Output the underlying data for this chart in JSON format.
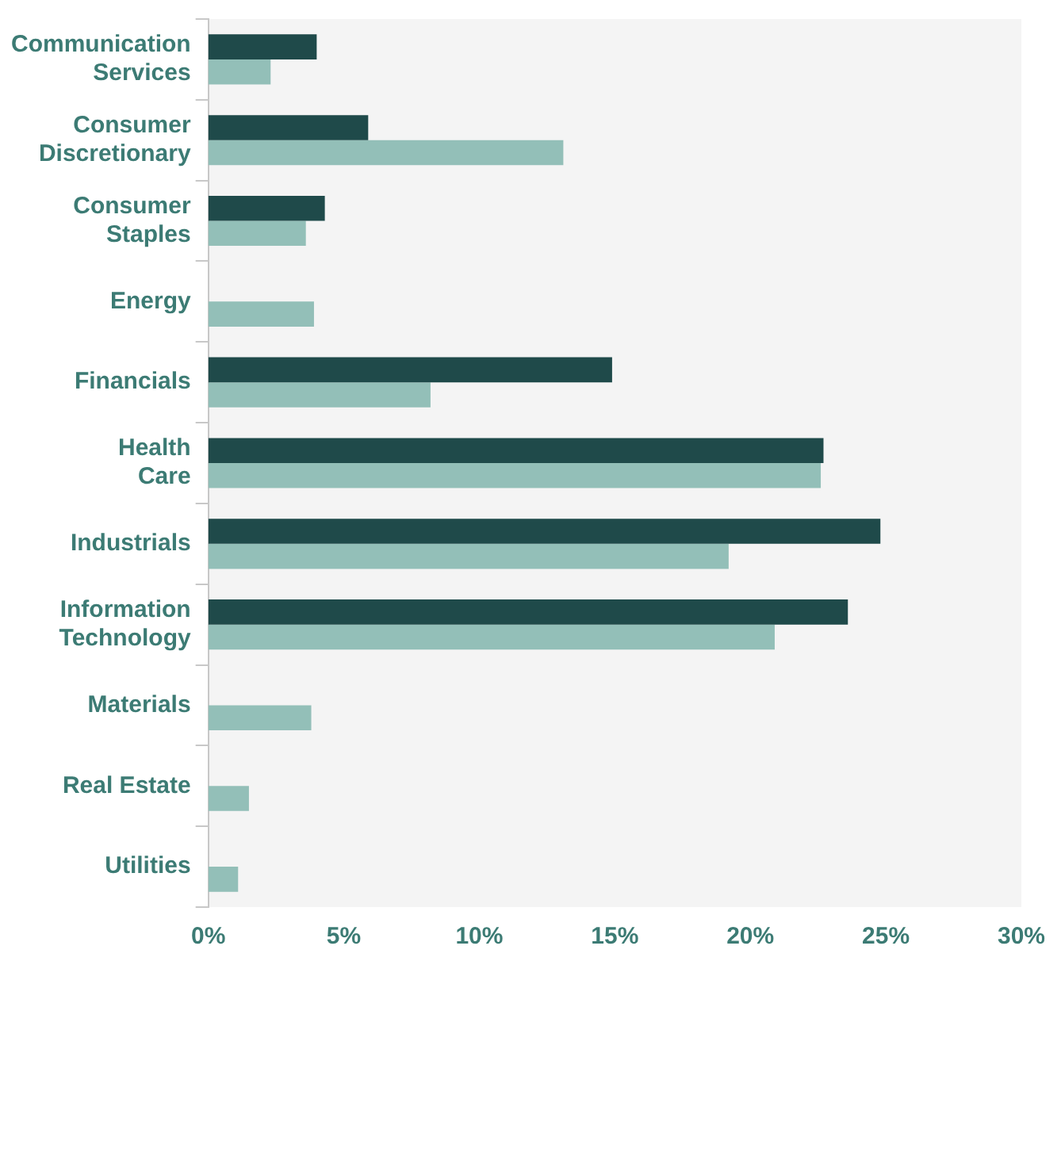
{
  "chart_data": {
    "type": "bar",
    "orientation": "horizontal",
    "categories": [
      "Communication\nServices",
      "Consumer\nDiscretionary",
      "Consumer\nStaples",
      "Energy",
      "Financials",
      "Health\nCare",
      "Industrials",
      "Information\nTechnology",
      "Materials",
      "Real Estate",
      "Utilities"
    ],
    "series": [
      {
        "color": "#1f4a4a",
        "values": [
          4.0,
          5.9,
          4.3,
          null,
          14.9,
          22.7,
          24.8,
          23.6,
          null,
          null,
          null
        ]
      },
      {
        "color": "#93bfb8",
        "values": [
          2.3,
          13.1,
          3.6,
          3.9,
          8.2,
          22.6,
          19.2,
          20.9,
          3.8,
          1.5,
          1.1
        ]
      }
    ],
    "xlim": [
      0,
      30
    ],
    "xticks": [
      {
        "value": 0,
        "label": "0%"
      },
      {
        "value": 5,
        "label": "5%"
      },
      {
        "value": 10,
        "label": "10%"
      },
      {
        "value": 15,
        "label": "15%"
      },
      {
        "value": 20,
        "label": "20%"
      },
      {
        "value": 25,
        "label": "25%"
      },
      {
        "value": 30,
        "label": "30%"
      }
    ],
    "grid": false,
    "legend": false
  }
}
